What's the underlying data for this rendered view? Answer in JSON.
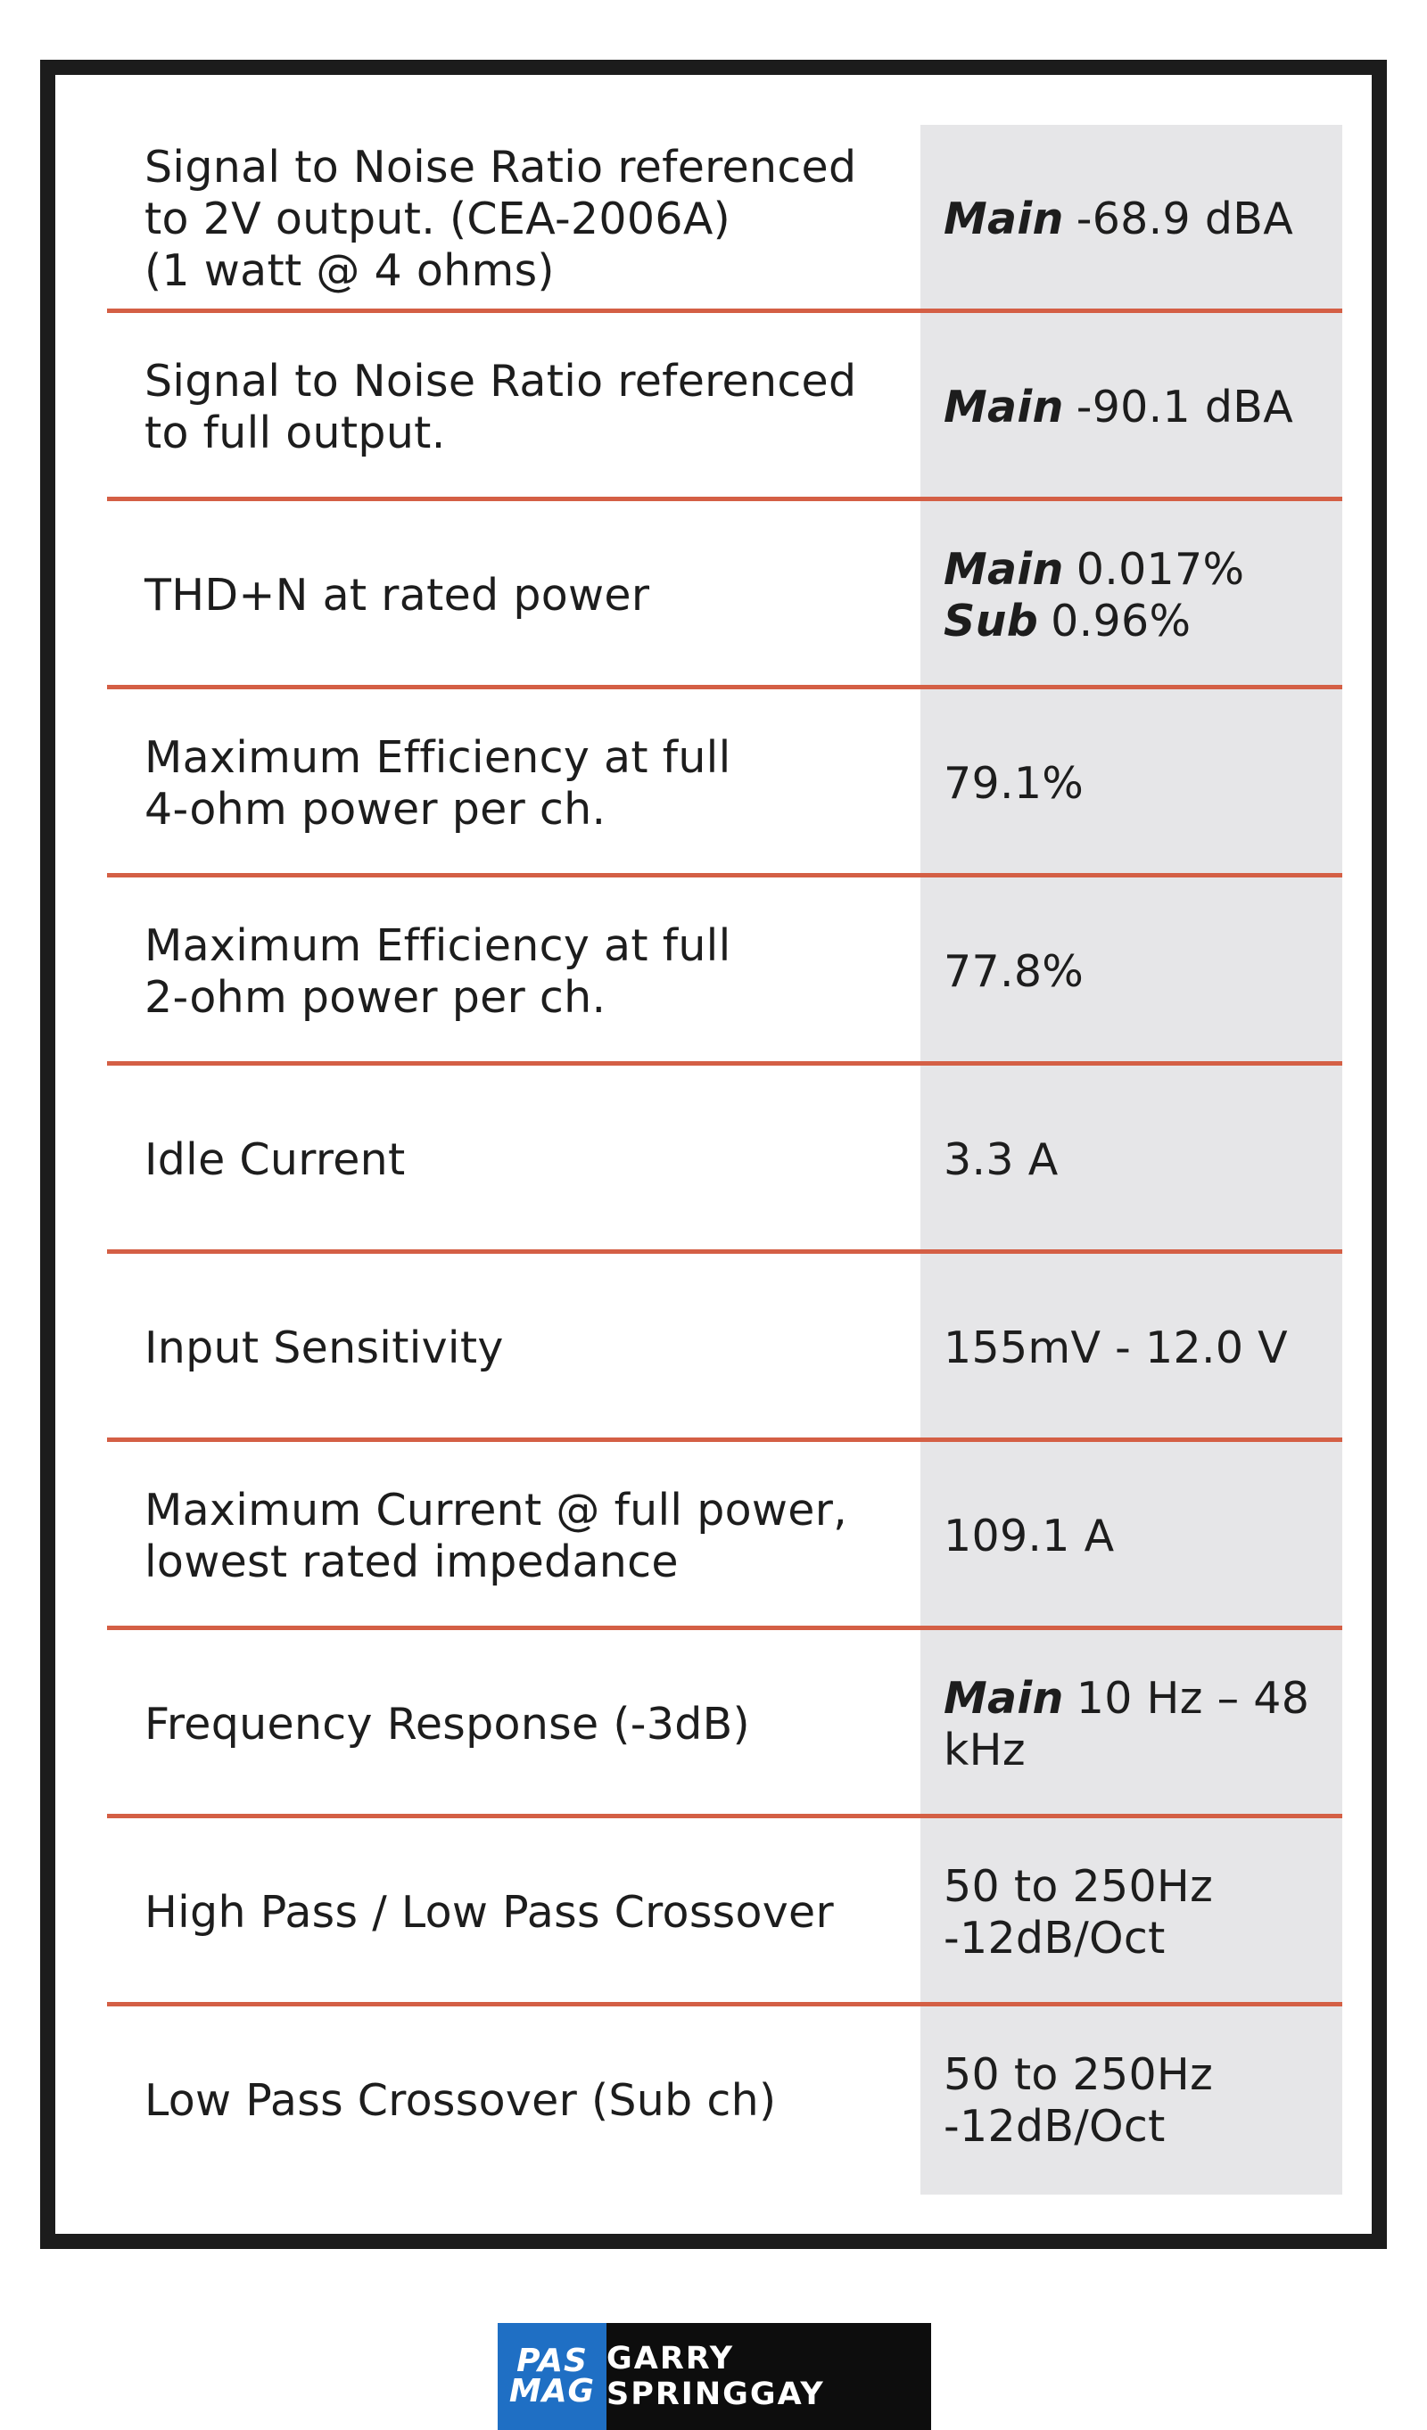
{
  "specs": [
    {
      "label_lines": [
        "Signal to Noise Ratio referenced",
        "to 2V output. (CEA-2006A)",
        "(1 watt @ 4 ohms)"
      ],
      "values": [
        {
          "channel": "Main",
          "text": "-68.9 dBA"
        }
      ]
    },
    {
      "label_lines": [
        "Signal to Noise Ratio referenced",
        "to full output."
      ],
      "values": [
        {
          "channel": "Main",
          "text": "-90.1 dBA"
        }
      ]
    },
    {
      "label_lines": [
        "THD+N at rated power"
      ],
      "values": [
        {
          "channel": "Main",
          "text": "0.017%"
        },
        {
          "channel": "Sub",
          "text": "0.96%"
        }
      ]
    },
    {
      "label_lines": [
        "Maximum Efficiency at full",
        "4-ohm power per ch."
      ],
      "values": [
        {
          "channel": "",
          "text": "79.1%"
        }
      ]
    },
    {
      "label_lines": [
        "Maximum Efficiency at full",
        "2-ohm power per ch."
      ],
      "values": [
        {
          "channel": "",
          "text": "77.8%"
        }
      ]
    },
    {
      "label_lines": [
        "Idle Current"
      ],
      "values": [
        {
          "channel": "",
          "text": "3.3 A"
        }
      ]
    },
    {
      "label_lines": [
        "Input Sensitivity"
      ],
      "values": [
        {
          "channel": "",
          "text": "155mV - 12.0 V"
        }
      ]
    },
    {
      "label_lines": [
        "Maximum Current @ full power,",
        "lowest rated impedance"
      ],
      "values": [
        {
          "channel": "",
          "text": "109.1 A"
        }
      ]
    },
    {
      "label_lines": [
        "Frequency Response (-3dB)"
      ],
      "values": [
        {
          "channel": "Main",
          "text": "10 Hz – 48",
          "cont": "kHz"
        }
      ]
    },
    {
      "label_lines": [
        "High Pass / Low Pass Crossover"
      ],
      "values": [
        {
          "channel": "",
          "text": "50 to 250Hz"
        },
        {
          "channel": "",
          "text": "-12dB/Oct"
        }
      ]
    },
    {
      "label_lines": [
        "Low Pass Crossover (Sub ch)"
      ],
      "values": [
        {
          "channel": "",
          "text": "50 to 250Hz"
        },
        {
          "channel": "",
          "text": "-12dB/Oct"
        }
      ]
    }
  ],
  "footer": {
    "logo_line1": "PAS",
    "logo_line2": "MAG",
    "author": "GARRY SPRINGGAY"
  },
  "colors": {
    "separator": "#d45f45",
    "value_bg": "#e6e6e8",
    "frame": "#1c1c1c",
    "logo_blue": "#1f6fc4"
  }
}
